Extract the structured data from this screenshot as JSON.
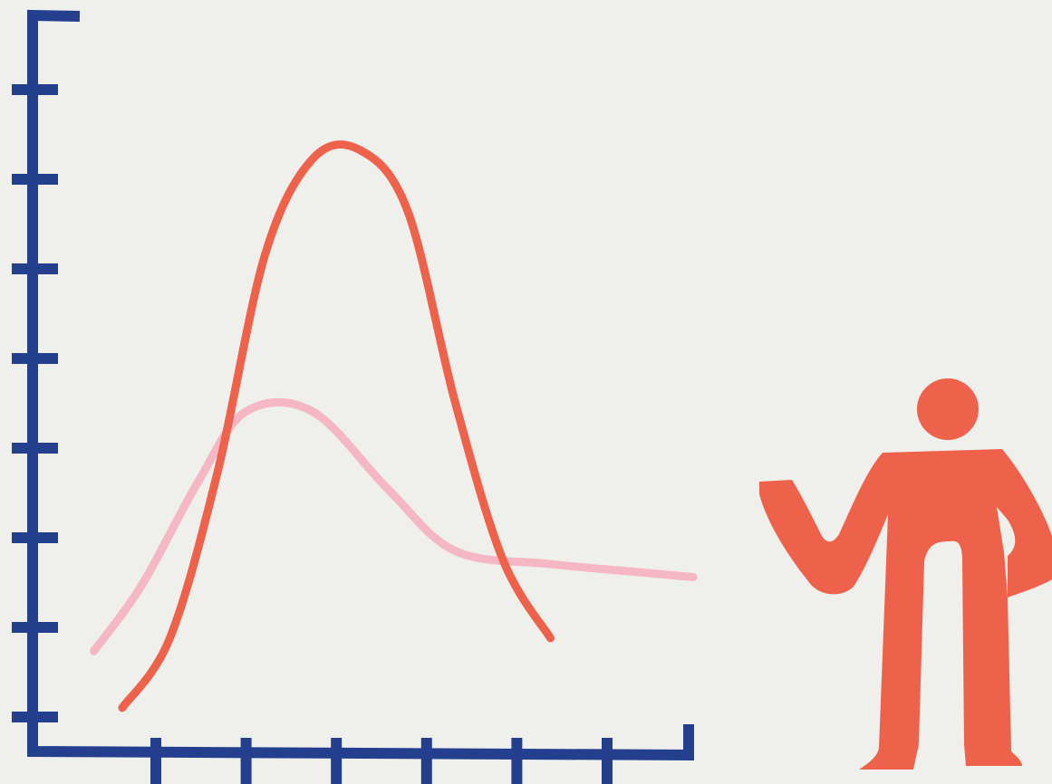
{
  "colors": {
    "background": "#efefeb",
    "axis": "#233f8e",
    "series_primary": "#ee614a",
    "series_secondary": "#f5b7c4",
    "figure": "#ee614a"
  },
  "icons": [
    "person-presenter-icon"
  ],
  "chart_data": {
    "type": "line",
    "title": "",
    "xlabel": "",
    "ylabel": "",
    "x_ticks": 6,
    "y_ticks": 8,
    "xlim": [
      0,
      7
    ],
    "ylim": [
      0,
      8
    ],
    "grid": false,
    "legend": "none",
    "series": [
      {
        "color": "#ee614a",
        "points": [
          [
            1.0,
            0.5
          ],
          [
            1.5,
            1.3
          ],
          [
            2.0,
            3.2
          ],
          [
            2.5,
            5.7
          ],
          [
            3.0,
            6.8
          ],
          [
            3.5,
            6.9
          ],
          [
            4.0,
            6.2
          ],
          [
            4.5,
            4.0
          ],
          [
            5.0,
            2.2
          ],
          [
            5.5,
            1.3
          ]
        ]
      },
      {
        "color": "#f5b7c4",
        "points": [
          [
            0.7,
            1.15
          ],
          [
            1.2,
            1.9
          ],
          [
            1.8,
            3.1
          ],
          [
            2.3,
            3.9
          ],
          [
            3.0,
            3.9
          ],
          [
            3.8,
            3.0
          ],
          [
            4.5,
            2.3
          ],
          [
            5.5,
            2.15
          ],
          [
            6.5,
            2.05
          ],
          [
            7.0,
            2.0
          ]
        ]
      }
    ]
  }
}
